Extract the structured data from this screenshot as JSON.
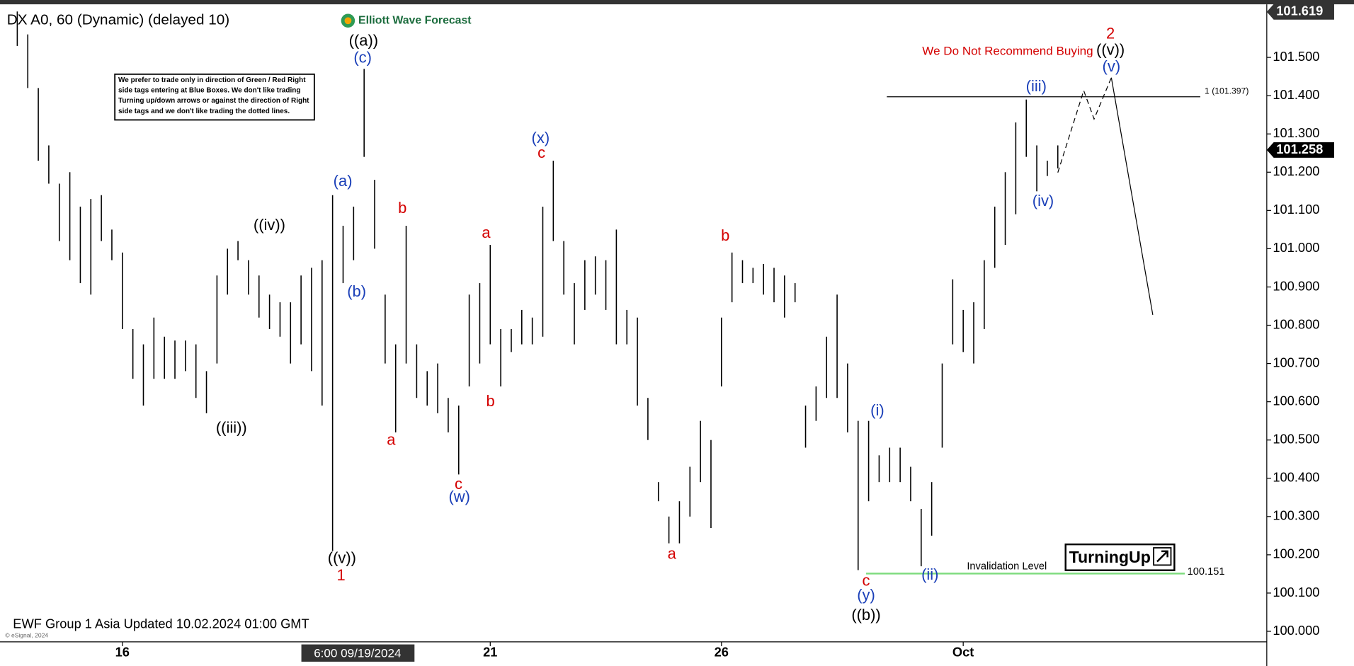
{
  "chart_data": {
    "type": "range_bar",
    "title": "DX A0, 60 (Dynamic) (delayed 10)",
    "logo": "Elliott Wave Forecast",
    "color": "#000000",
    "categories": [
      null,
      null,
      null,
      null,
      null,
      null,
      null,
      null,
      null,
      null,
      "16",
      null,
      null,
      null,
      null,
      null,
      null,
      null,
      null,
      null,
      null,
      null,
      null,
      null,
      null,
      null,
      null,
      null,
      null,
      null,
      null,
      null,
      null,
      null,
      null,
      null,
      null,
      null,
      null,
      null,
      null,
      null,
      null,
      null,
      null,
      "21",
      null,
      null,
      null,
      null,
      null,
      null,
      null,
      null,
      null,
      null,
      null,
      null,
      null,
      null,
      null,
      null,
      null,
      null,
      null,
      null,
      null,
      "26",
      null,
      null,
      null,
      null,
      null,
      null,
      null,
      null,
      null,
      null,
      null,
      null,
      null,
      null,
      null,
      null,
      null,
      null,
      null,
      null,
      null,
      null,
      "Oct",
      null,
      null,
      null,
      null,
      null,
      null,
      null,
      null,
      null
    ],
    "high": [
      101.62,
      101.56,
      101.42,
      101.27,
      101.17,
      101.2,
      101.11,
      101.13,
      101.14,
      101.05,
      100.99,
      100.79,
      100.75,
      100.82,
      100.77,
      100.76,
      100.76,
      100.75,
      100.68,
      100.93,
      101.0,
      101.02,
      100.97,
      100.93,
      100.88,
      100.86,
      100.86,
      100.93,
      100.95,
      100.97,
      101.14,
      101.06,
      101.11,
      101.47,
      101.18,
      100.88,
      100.75,
      101.06,
      100.75,
      100.68,
      100.7,
      100.61,
      100.59,
      100.88,
      100.91,
      101.01,
      100.79,
      100.79,
      100.84,
      100.82,
      101.11,
      101.23,
      101.02,
      100.91,
      100.97,
      100.98,
      100.97,
      101.05,
      100.84,
      100.82,
      100.61,
      100.39,
      100.3,
      100.34,
      100.43,
      100.55,
      100.5,
      100.82,
      100.99,
      100.97,
      100.95,
      100.96,
      100.95,
      100.93,
      100.91,
      100.59,
      100.64,
      100.77,
      100.88,
      100.7,
      100.55,
      100.55,
      100.46,
      100.48,
      100.48,
      100.43,
      100.32,
      100.39,
      100.7,
      100.92,
      100.84,
      100.86,
      100.97,
      101.11,
      101.2,
      101.33,
      101.39,
      101.27,
      101.23,
      101.27
    ],
    "low": [
      101.53,
      101.42,
      101.23,
      101.17,
      101.02,
      100.97,
      100.91,
      100.88,
      101.02,
      100.97,
      100.79,
      100.66,
      100.59,
      100.66,
      100.66,
      100.66,
      100.68,
      100.61,
      100.57,
      100.7,
      100.88,
      100.97,
      100.88,
      100.82,
      100.79,
      100.77,
      100.7,
      100.75,
      100.68,
      100.59,
      100.21,
      100.91,
      100.97,
      101.24,
      101.0,
      100.7,
      100.52,
      100.7,
      100.61,
      100.59,
      100.57,
      100.52,
      100.41,
      100.64,
      100.7,
      100.75,
      100.64,
      100.73,
      100.75,
      100.75,
      100.77,
      101.02,
      100.88,
      100.75,
      100.84,
      100.88,
      100.84,
      100.75,
      100.75,
      100.59,
      100.5,
      100.34,
      100.23,
      100.23,
      100.3,
      100.39,
      100.27,
      100.64,
      100.86,
      100.91,
      100.91,
      100.88,
      100.86,
      100.82,
      100.86,
      100.48,
      100.55,
      100.61,
      100.61,
      100.52,
      100.16,
      100.34,
      100.39,
      100.39,
      100.39,
      100.34,
      100.17,
      100.25,
      100.48,
      100.75,
      100.73,
      100.7,
      100.79,
      100.95,
      101.01,
      101.09,
      101.24,
      101.15,
      101.19,
      101.21
    ],
    "ylim": [
      99.977,
      101.632
    ],
    "yticks": [
      {
        "value": 100.0,
        "label": "100.000"
      },
      {
        "value": 100.1,
        "label": "100.100"
      },
      {
        "value": 100.2,
        "label": "100.200"
      },
      {
        "value": 100.3,
        "label": "100.300"
      },
      {
        "value": 100.4,
        "label": "100.400"
      },
      {
        "value": 100.5,
        "label": "100.500"
      },
      {
        "value": 100.6,
        "label": "100.600"
      },
      {
        "value": 100.7,
        "label": "100.700"
      },
      {
        "value": 100.8,
        "label": "100.800"
      },
      {
        "value": 100.9,
        "label": "100.900"
      },
      {
        "value": 101.0,
        "label": "101.000"
      },
      {
        "value": 101.1,
        "label": "101.100"
      },
      {
        "value": 101.2,
        "label": "101.200"
      },
      {
        "value": 101.3,
        "label": "101.300"
      },
      {
        "value": 101.4,
        "label": "101.400"
      },
      {
        "value": 101.5,
        "label": "101.500"
      }
    ],
    "price_tags": [
      101.619,
      101.258
    ],
    "levels": [
      {
        "label": "1 (101.397)",
        "value": 101.397,
        "color": "#000000"
      },
      {
        "label": "Invalidation Level",
        "value": 100.151,
        "color": "#7fdc7f"
      }
    ],
    "crosshair_label": "6:00 09/19/2024",
    "note": [
      "We prefer to trade only in direction of Green / Red Right",
      "side tags entering at Blue Boxes. We don't like trading",
      "Turning up/down arrows or against the direction of Right",
      "side tags and we don't like trading the dotted lines."
    ],
    "warning": "We Do Not Recommend Buying",
    "badge": "TurningUp",
    "footer": "EWF Group 1 Asia Updated 10.02.2024 01:00 GMT",
    "copyright": "© eSignal, 2024",
    "wave_labels": [
      {
        "text": "((a))",
        "color": "#000000"
      },
      {
        "text": "((iii))",
        "color": "#000000"
      },
      {
        "text": "((iv))",
        "color": "#000000"
      },
      {
        "text": "((v))",
        "color": "#000000"
      },
      {
        "text": "((b))",
        "color": "#000000"
      },
      {
        "text": "((v))",
        "color": "#000000"
      },
      {
        "text": "1",
        "color": "#d40000"
      },
      {
        "text": "2",
        "color": "#d40000"
      },
      {
        "text": "a",
        "color": "#d40000"
      },
      {
        "text": "b",
        "color": "#d40000"
      },
      {
        "text": "a",
        "color": "#d40000"
      },
      {
        "text": "b",
        "color": "#d40000"
      },
      {
        "text": "c",
        "color": "#d40000"
      },
      {
        "text": "c",
        "color": "#d40000"
      },
      {
        "text": "b",
        "color": "#d40000"
      },
      {
        "text": "a",
        "color": "#d40000"
      },
      {
        "text": "c",
        "color": "#d40000"
      },
      {
        "text": "(c)",
        "color": "#1a3fb8"
      },
      {
        "text": "(a)",
        "color": "#1a3fb8"
      },
      {
        "text": "(b)",
        "color": "#1a3fb8"
      },
      {
        "text": "(w)",
        "color": "#1a3fb8"
      },
      {
        "text": "(x)",
        "color": "#1a3fb8"
      },
      {
        "text": "(i)",
        "color": "#1a3fb8"
      },
      {
        "text": "(ii)",
        "color": "#1a3fb8"
      },
      {
        "text": "(y)",
        "color": "#1a3fb8"
      },
      {
        "text": "(iii)",
        "color": "#1a3fb8"
      },
      {
        "text": "(iv)",
        "color": "#1a3fb8"
      },
      {
        "text": "(v)",
        "color": "#1a3fb8"
      }
    ]
  }
}
